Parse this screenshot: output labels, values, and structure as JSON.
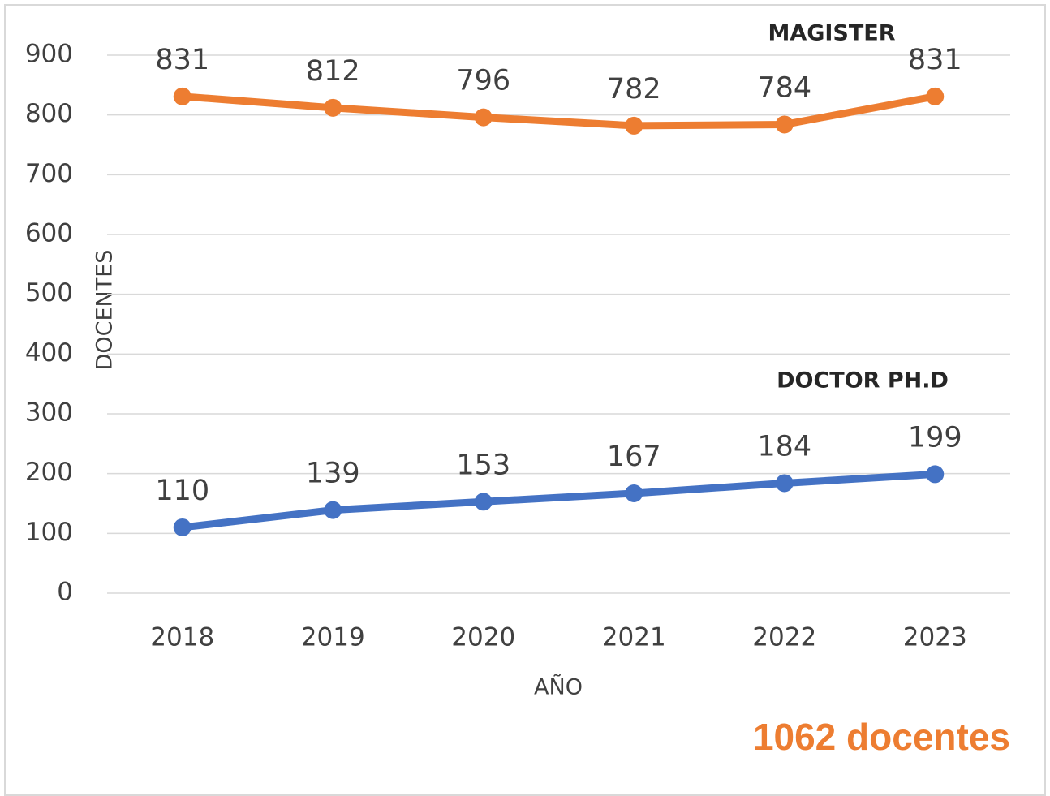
{
  "chart_data": {
    "type": "line",
    "y_label": "DOCENTES",
    "x_label": "AÑO",
    "annotation": "1062 docentes",
    "categories": [
      "2018",
      "2019",
      "2020",
      "2021",
      "2022",
      "2023"
    ],
    "series": [
      {
        "name": "MAGISTER",
        "color": "#ed7d31",
        "values": [
          831,
          812,
          796,
          782,
          784,
          831
        ]
      },
      {
        "name": "DOCTOR PH.D",
        "color": "#4472c4",
        "values": [
          110,
          139,
          153,
          167,
          184,
          199
        ]
      }
    ],
    "ylim": [
      0,
      900
    ],
    "yticks": [
      0,
      100,
      200,
      300,
      400,
      500,
      600,
      700,
      800,
      900
    ],
    "grid": true
  }
}
